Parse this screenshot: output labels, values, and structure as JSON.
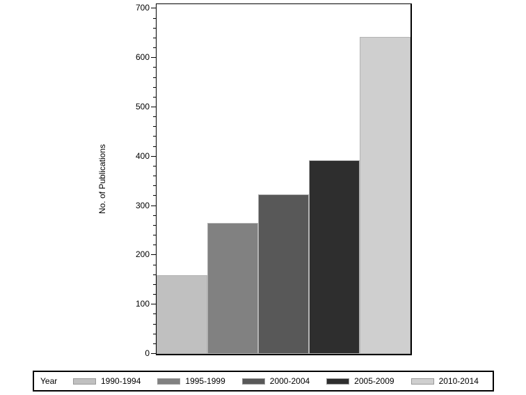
{
  "chart_data": {
    "type": "bar",
    "title": "",
    "xlabel": "",
    "ylabel": "No. of Publications",
    "legend_title": "Year",
    "legend_position": "bottom",
    "grid": false,
    "categories": [
      "1990-1994",
      "1995-1999",
      "2000-2004",
      "2005-2009",
      "2010-2014"
    ],
    "values": [
      160,
      266,
      324,
      393,
      642
    ],
    "ylim": [
      0,
      700
    ],
    "y_major_tick_interval": 100,
    "y_minor_tick_interval": 20,
    "y_tick_labels": [
      "0",
      "100",
      "200",
      "300",
      "400",
      "500",
      "600",
      "700"
    ],
    "bar_colors": [
      "#c0c0c0",
      "#818181",
      "#585858",
      "#2e2e2e",
      "#cfcfcf"
    ],
    "bar_outline_color": "#b4b4b4",
    "axis_color": "#000000",
    "background_color": "#ffffff"
  }
}
